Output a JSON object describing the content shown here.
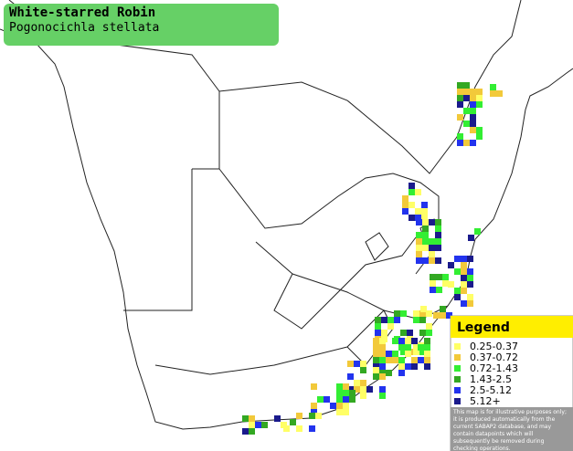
{
  "header": {
    "title": "White-starred Robin",
    "subtitle": "Pogonocichla stellata"
  },
  "legend": {
    "title": "Legend",
    "items": [
      {
        "label": "0.25-0.37",
        "color": "#ffff66"
      },
      {
        "label": "0.37-0.72",
        "color": "#f2c93a"
      },
      {
        "label": "0.72-1.43",
        "color": "#33ee33"
      },
      {
        "label": "1.43-2.5",
        "color": "#33a822"
      },
      {
        "label": "2.5-5.12",
        "color": "#2233ee"
      },
      {
        "label": "5.12+",
        "color": "#1a1a8c"
      }
    ],
    "note": "This map is for illustrative purposes only; it is produced automatically from the current SABAP2 database, and may contain datapoints which will subsequently be removed during checking operations."
  }
}
